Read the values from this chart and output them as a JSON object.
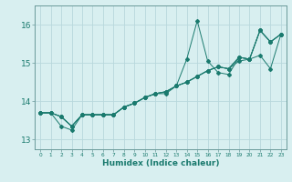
{
  "xlabel": "Humidex (Indice chaleur)",
  "bg_color": "#d8eff0",
  "grid_color": "#b8d8dc",
  "line_color": "#1a7a6e",
  "spine_color": "#6a9a9a",
  "xlim": [
    -0.5,
    23.5
  ],
  "ylim": [
    12.75,
    16.5
  ],
  "yticks": [
    13,
    14,
    15,
    16
  ],
  "xticks": [
    0,
    1,
    2,
    3,
    4,
    5,
    6,
    7,
    8,
    9,
    10,
    11,
    12,
    13,
    14,
    15,
    16,
    17,
    18,
    19,
    20,
    21,
    22,
    23
  ],
  "series": [
    [
      13.7,
      13.7,
      13.6,
      13.35,
      13.65,
      13.65,
      13.65,
      13.65,
      13.85,
      13.95,
      14.1,
      14.2,
      14.2,
      14.4,
      15.1,
      16.1,
      15.05,
      14.75,
      14.7,
      15.15,
      15.1,
      15.85,
      15.55,
      15.75
    ],
    [
      13.7,
      13.7,
      13.6,
      13.35,
      13.65,
      13.65,
      13.65,
      13.65,
      13.85,
      13.95,
      14.1,
      14.2,
      14.25,
      14.4,
      14.5,
      14.65,
      14.8,
      14.9,
      14.85,
      15.15,
      15.1,
      15.85,
      15.55,
      15.75
    ],
    [
      13.7,
      13.7,
      13.6,
      13.35,
      13.65,
      13.65,
      13.65,
      13.65,
      13.85,
      13.95,
      14.1,
      14.2,
      14.25,
      14.4,
      14.5,
      14.65,
      14.8,
      14.9,
      14.85,
      15.15,
      15.1,
      15.85,
      15.55,
      15.75
    ],
    [
      13.7,
      13.7,
      13.35,
      13.25,
      13.65,
      13.65,
      13.65,
      13.65,
      13.85,
      13.95,
      14.1,
      14.2,
      14.25,
      14.4,
      14.5,
      14.65,
      14.8,
      14.9,
      14.85,
      15.05,
      15.1,
      15.2,
      14.85,
      15.75
    ]
  ]
}
